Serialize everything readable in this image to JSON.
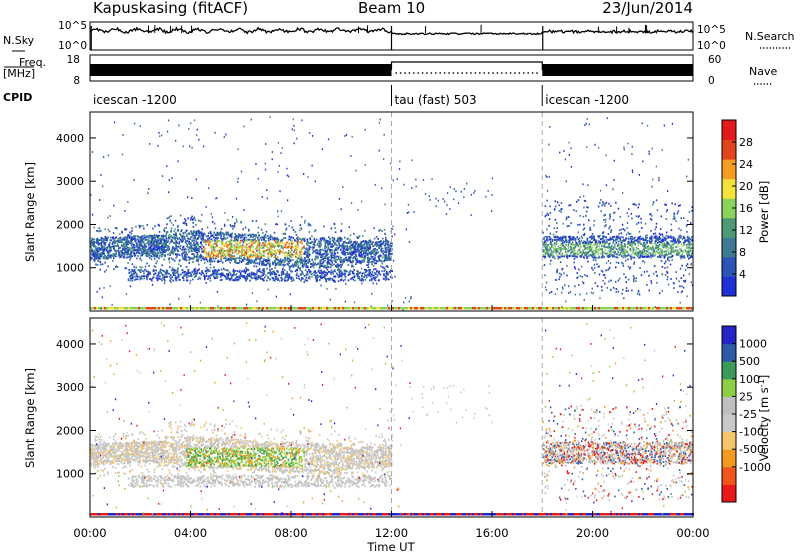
{
  "header": {
    "station": "Kapuskasing (fitACF)",
    "beam": "Beam 10",
    "date": "23/Jun/2014"
  },
  "panels": {
    "nsky": {
      "label": "N.Sky",
      "ticks_left": [
        "10^5",
        "10^0"
      ],
      "ticks_right": [
        "10^5",
        "10^0"
      ],
      "right_label": "N.Search"
    },
    "freq": {
      "label_line1": "Freq.",
      "label_line2": "[MHz]",
      "ticks_left": [
        "18",
        "8"
      ],
      "ticks_right": [
        "60",
        "0"
      ],
      "right_label": "Nave"
    },
    "cpid": {
      "label": "CPID",
      "segments": [
        {
          "start_h": 0,
          "end_h": 12,
          "name": "icescan -1200"
        },
        {
          "start_h": 12,
          "end_h": 18,
          "name": "tau (fast) 503"
        },
        {
          "start_h": 18,
          "end_h": 24,
          "name": "icescan -1200"
        }
      ]
    }
  },
  "colors": {
    "power": [
      "#1f2fd6",
      "#2b55b5",
      "#3f7a95",
      "#4e9a76",
      "#8cd35a",
      "#f2e23a",
      "#f49c23",
      "#e2461d",
      "#e31a1c"
    ],
    "velocity": [
      "#ea1a1a",
      "#f0561c",
      "#f29a22",
      "#f5c56b",
      "#c8c8c8",
      "#bfbfbf",
      "#8ccf45",
      "#3a9a5a",
      "#2e5aa8",
      "#2424c8"
    ]
  },
  "chart_data": [
    {
      "type": "heatmap",
      "xlabel": "",
      "ylabel": "Slant Range [km]",
      "xlim": [
        0,
        24
      ],
      "ylim": [
        0,
        4600
      ],
      "yticks": [
        1000,
        2000,
        3000,
        4000
      ],
      "colorbar": {
        "label": "Power [dB]",
        "range": [
          0,
          32
        ],
        "ticks": [
          4,
          8,
          12,
          16,
          20,
          24,
          28
        ]
      },
      "dividers_h": [
        12,
        18
      ]
    },
    {
      "type": "heatmap",
      "xlabel": "Time UT",
      "ylabel": "Slant Range [km]",
      "xlim": [
        0,
        24
      ],
      "ylim": [
        0,
        4600
      ],
      "xticks": [
        "00:00",
        "04:00",
        "08:00",
        "12:00",
        "16:00",
        "20:00",
        "00:00"
      ],
      "yticks": [
        1000,
        2000,
        3000,
        4000
      ],
      "colorbar": {
        "label": "Velocity [m s^-1]",
        "unit": "m s",
        "exponent": "-1",
        "levels": [
          -1000,
          -500,
          -100,
          -25,
          25,
          100,
          500,
          1000
        ],
        "tick_labels": [
          "1000",
          "500",
          "100",
          "25",
          "-25",
          "-100",
          "-500",
          "-1000"
        ]
      },
      "dividers_h": [
        12,
        18
      ]
    }
  ]
}
